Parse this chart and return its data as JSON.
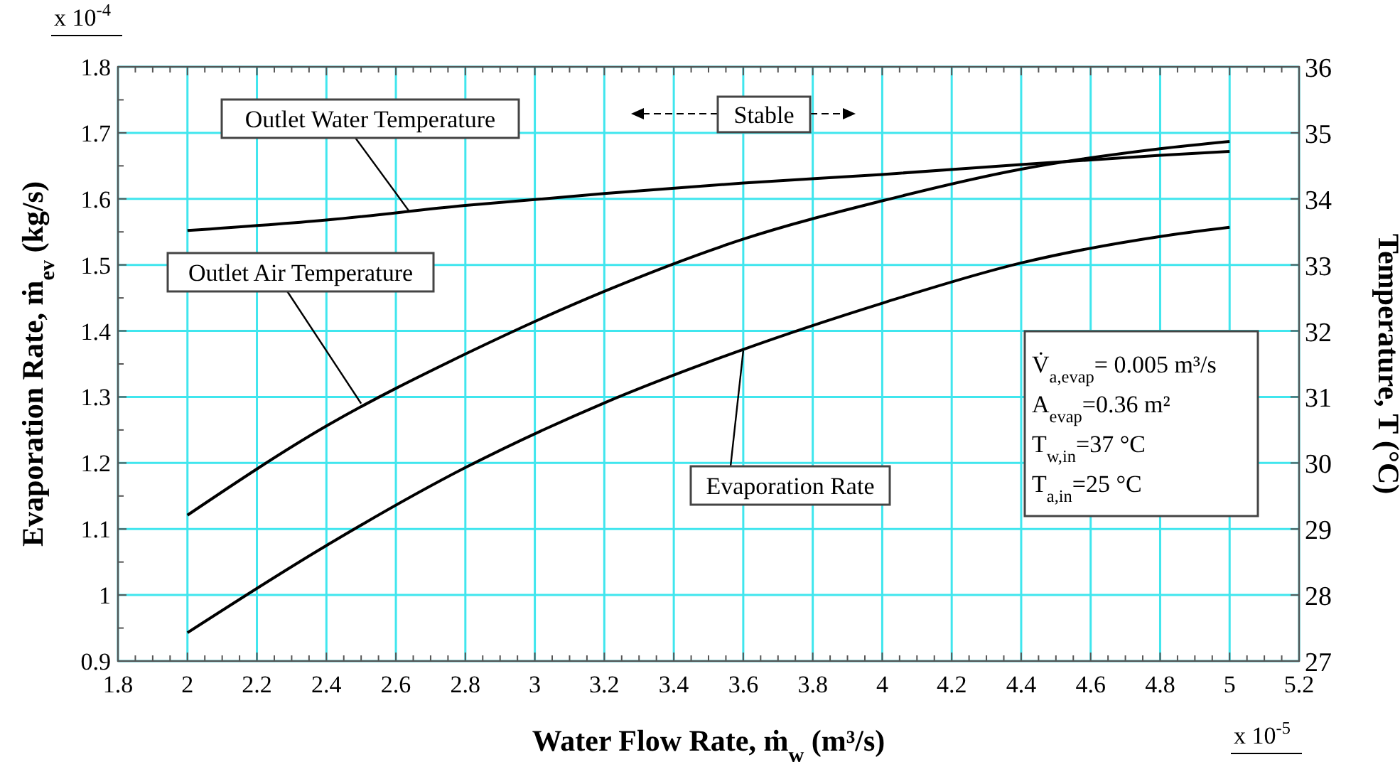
{
  "chart_data": {
    "type": "line",
    "xlabel": "Water Flow Rate, ṁ$_{w}$ (m³/s)",
    "ylabel": "Evaporation Rate, ṁ$_{ev}$ (kg/s)",
    "y2label": "Temperature, T (°C)",
    "x": [
      2,
      2.4,
      2.8,
      3.2,
      3.6,
      4,
      4.4,
      4.8,
      5
    ],
    "series": [
      {
        "color": "#000000",
        "values": [
          0.943,
          1.075,
          1.193,
          1.291,
          1.372,
          1.442,
          1.503,
          1.543,
          1.557
        ]
      },
      {
        "color": "#000000",
        "axis": "y2",
        "values": [
          29.21,
          30.56,
          31.65,
          32.6,
          33.39,
          33.97,
          34.45,
          34.76,
          34.87
        ]
      },
      {
        "color": "#000000",
        "axis": "y2",
        "values": [
          33.52,
          33.68,
          33.9,
          34.08,
          34.24,
          34.37,
          34.52,
          34.66,
          34.72
        ]
      }
    ],
    "xlim": [
      1.8,
      5.2
    ],
    "xticks": [
      1.8,
      {
        "value": 1.85,
        "label": null
      },
      {
        "value": 1.9,
        "label": null
      },
      {
        "value": 1.95,
        "label": null
      },
      2,
      {
        "value": 2.05,
        "label": null
      },
      {
        "value": 2.1,
        "label": null
      },
      {
        "value": 2.15,
        "label": null
      },
      2.2,
      {
        "value": 2.25,
        "label": null
      },
      {
        "value": 2.3,
        "label": null
      },
      {
        "value": 2.35,
        "label": null
      },
      2.4,
      {
        "value": 2.45,
        "label": null
      },
      {
        "value": 2.5,
        "label": null
      },
      {
        "value": 2.55,
        "label": null
      },
      2.6,
      {
        "value": 2.65,
        "label": null
      },
      {
        "value": 2.7,
        "label": null
      },
      {
        "value": 2.75,
        "label": null
      },
      2.8,
      {
        "value": 2.85,
        "label": null
      },
      {
        "value": 2.9,
        "label": null
      },
      {
        "value": 2.95,
        "label": null
      },
      3,
      {
        "value": 3.05,
        "label": null
      },
      {
        "value": 3.1,
        "label": null
      },
      {
        "value": 3.15,
        "label": null
      },
      3.2,
      {
        "value": 3.25,
        "label": null
      },
      {
        "value": 3.3,
        "label": null
      },
      {
        "value": 3.35,
        "label": null
      },
      3.4,
      {
        "value": 3.45,
        "label": null
      },
      {
        "value": 3.5,
        "label": null
      },
      {
        "value": 3.55,
        "label": null
      },
      3.6,
      {
        "value": 3.65,
        "label": null
      },
      {
        "value": 3.7,
        "label": null
      },
      {
        "value": 3.75,
        "label": null
      },
      3.8,
      {
        "value": 3.85,
        "label": null
      },
      {
        "value": 3.9,
        "label": null
      },
      {
        "value": 3.95,
        "label": null
      },
      4,
      {
        "value": 4.05,
        "label": null
      },
      {
        "value": 4.1,
        "label": null
      },
      {
        "value": 4.15,
        "label": null
      },
      4.2,
      {
        "value": 4.25,
        "label": null
      },
      {
        "value": 4.3,
        "label": null
      },
      {
        "value": 4.35,
        "label": null
      },
      4.4,
      {
        "value": 4.45,
        "label": null
      },
      {
        "value": 4.5,
        "label": null
      },
      {
        "value": 4.55,
        "label": null
      },
      4.6,
      {
        "value": 4.65,
        "label": null
      },
      {
        "value": 4.7,
        "label": null
      },
      {
        "value": 4.75,
        "label": null
      },
      4.8,
      {
        "value": 4.85,
        "label": null
      },
      {
        "value": 4.9,
        "label": null
      },
      {
        "value": 4.95,
        "label": null
      },
      5,
      {
        "value": 5.05,
        "label": null
      },
      {
        "value": 5.1,
        "label": null
      },
      {
        "value": 5.15,
        "label": null
      },
      5.2
    ],
    "ylim": [
      0.9,
      1.8
    ],
    "yticks": [
      0.9,
      {
        "value": 0.95,
        "label": null
      },
      1,
      {
        "value": 1.05,
        "label": null
      },
      1.1,
      {
        "value": 1.15,
        "label": null
      },
      1.2,
      {
        "value": 1.25,
        "label": null
      },
      1.3,
      {
        "value": 1.35,
        "label": null
      },
      1.4,
      {
        "value": 1.45,
        "label": null
      },
      1.5,
      {
        "value": 1.55,
        "label": null
      },
      1.6,
      {
        "value": 1.65,
        "label": null
      },
      1.7,
      {
        "value": 1.75,
        "label": null
      },
      1.8
    ],
    "y2lim": [
      27,
      36
    ],
    "y2ticks": [
      27,
      28,
      29,
      30,
      31,
      32,
      33,
      34,
      35,
      36
    ],
    "grid": true,
    "line_style": "solid",
    "marker": "none",
    "annotations": [
      "Stable",
      {
        "text": "Outlet Water Temperature",
        "x": 2.64,
        "y": 1.58
      },
      {
        "text": "Outlet Air Temperature",
        "x": 2.5,
        "y": 1.29
      },
      {
        "text": "Evaporation Rate",
        "x": 3.6,
        "y": 1.37
      },
      "V̇$_{a,evap}$= 0.005 m³/s",
      "A$_{evap}$=0.36 m²",
      "T$_{w,in}$=37 °C",
      "T$_{a,in}$=25 °C",
      "x 10$^{-4}$",
      "x 10$^{-5}$"
    ]
  }
}
